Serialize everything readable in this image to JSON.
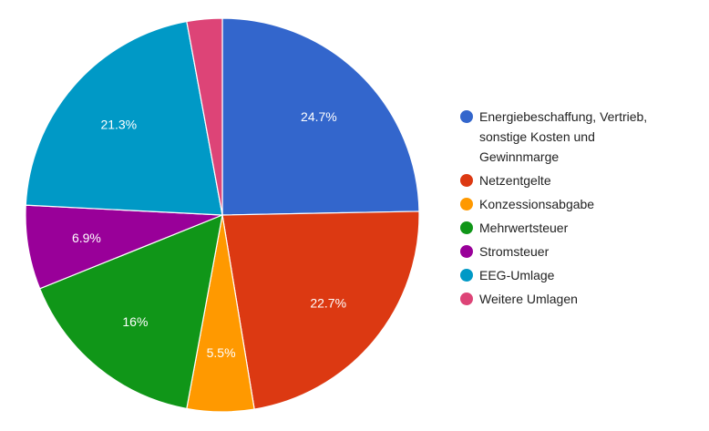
{
  "chart_data": {
    "type": "pie",
    "title": "",
    "legend_position": "right",
    "slices": [
      {
        "name": "Energiebeschaffung, Vertrieb, sonstige Kosten und Gewinnmarge",
        "legend_lines": [
          "Energiebeschaffung, Vertrieb,",
          "sonstige Kosten und",
          "Gewinnmarge"
        ],
        "value": 24.7,
        "label": "24.7%",
        "color": "#3366cc"
      },
      {
        "name": "Netzentgelte",
        "legend_lines": [
          "Netzentgelte"
        ],
        "value": 22.7,
        "label": "22.7%",
        "color": "#dc3912"
      },
      {
        "name": "Konzessionsabgabe",
        "legend_lines": [
          "Konzessionsabgabe"
        ],
        "value": 5.5,
        "label": "5.5%",
        "color": "#ff9900"
      },
      {
        "name": "Mehrwertsteuer",
        "legend_lines": [
          "Mehrwertsteuer"
        ],
        "value": 16,
        "label": "16%",
        "color": "#109618"
      },
      {
        "name": "Stromsteuer",
        "legend_lines": [
          "Stromsteuer"
        ],
        "value": 6.9,
        "label": "6.9%",
        "color": "#990099"
      },
      {
        "name": "EEG-Umlage",
        "legend_lines": [
          "EEG-Umlage"
        ],
        "value": 21.3,
        "label": "21.3%",
        "color": "#0099c6"
      },
      {
        "name": "Weitere Umlagen",
        "legend_lines": [
          "Weitere Umlagen"
        ],
        "value": 2.9,
        "label": "",
        "color": "#dd4477"
      }
    ]
  }
}
